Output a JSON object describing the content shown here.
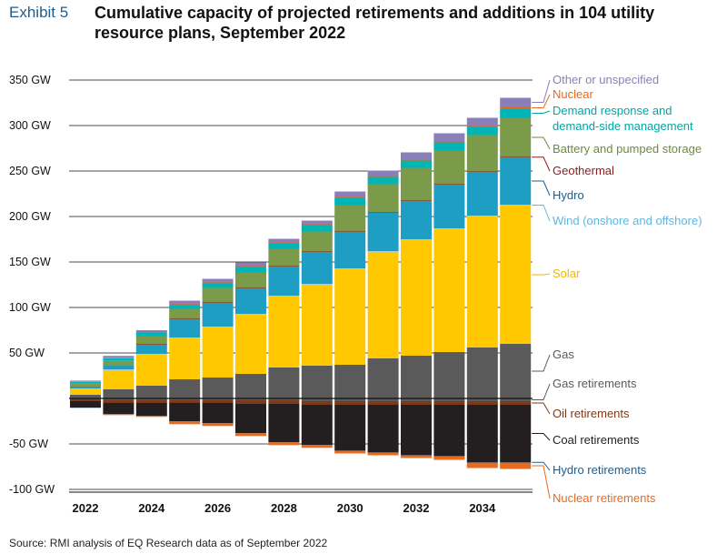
{
  "header": {
    "exhibit": "Exhibit 5",
    "title": "Cumulative capacity of projected retirements and additions in 104 utility resource plans, September 2022"
  },
  "source": "Source: RMI analysis of EQ Research data as of September 2022",
  "chart_data": {
    "type": "bar",
    "stacked": true,
    "ylim": [
      -100,
      350
    ],
    "yticks": [
      350,
      300,
      250,
      200,
      150,
      100,
      50,
      -50,
      -100
    ],
    "ytick_labels": [
      "350 GW",
      "300 GW",
      "250 GW",
      "200 GW",
      "150 GW",
      "100 GW",
      "50 GW",
      "-50 GW",
      "-100 GW"
    ],
    "categories": [
      2022,
      2023,
      2024,
      2025,
      2026,
      2027,
      2028,
      2029,
      2030,
      2031,
      2032,
      2033,
      2034,
      2035
    ],
    "xtick_labels": [
      "2022",
      "2024",
      "2026",
      "2028",
      "2030",
      "2032",
      "2034"
    ],
    "grid": true,
    "legend_placement": "right",
    "series_positive": [
      {
        "name": "Gas",
        "color": "#5a5a5a",
        "values": [
          4,
          10,
          14,
          21,
          23,
          27,
          34,
          36,
          37,
          44,
          47,
          51,
          56,
          60
        ]
      },
      {
        "name": "Solar",
        "color": "#ffc800",
        "values": [
          6,
          21,
          34,
          45,
          55,
          65,
          78,
          89,
          105,
          117,
          127,
          135,
          144,
          152
        ]
      },
      {
        "name": "Wind (onshore and offshore)",
        "color": "#9fd3ea",
        "values": [
          1,
          1,
          1,
          1,
          1,
          1,
          1,
          1,
          1,
          1,
          1,
          1,
          1,
          1
        ]
      },
      {
        "name": "Hydro",
        "color": "#1f9ec4",
        "values": [
          2,
          4,
          10,
          20,
          26,
          28,
          32,
          35,
          40,
          42,
          42,
          48,
          48,
          52
        ]
      },
      {
        "name": "Geothermal",
        "color": "#8c1d1d",
        "values": [
          0.3,
          0.3,
          0.5,
          0.5,
          0.5,
          0.5,
          0.5,
          0.5,
          0.5,
          0.5,
          0.5,
          0.5,
          0.5,
          0.5
        ]
      },
      {
        "name": "Battery and pumped storage",
        "color": "#7b9a4a",
        "values": [
          3,
          5,
          9,
          11,
          16,
          17,
          19,
          22,
          29,
          31,
          36,
          37,
          40,
          43
        ]
      },
      {
        "name": "Demand response and demand-side management",
        "color": "#00b5b5",
        "values": [
          2,
          3,
          4,
          4,
          5,
          6,
          6,
          7,
          8,
          8,
          8,
          9,
          9,
          10
        ]
      },
      {
        "name": "Nuclear",
        "color": "#e86a1f",
        "values": [
          0.3,
          0.5,
          0.5,
          1,
          1,
          1,
          1,
          1,
          1,
          1,
          1,
          1,
          1,
          2
        ]
      },
      {
        "name": "Other or unspecified",
        "color": "#8b7fba",
        "values": [
          1,
          2,
          2,
          4,
          4,
          4,
          4,
          4,
          6,
          6,
          8,
          9,
          9,
          10
        ]
      }
    ],
    "series_negative": [
      {
        "name": "Gas retirements",
        "color": "#5a5a5a",
        "values": [
          -1,
          -2,
          -2,
          -2,
          -2,
          -2,
          -2,
          -3,
          -3,
          -3,
          -3,
          -3,
          -3,
          -3
        ]
      },
      {
        "name": "Oil retirements",
        "color": "#7a3a1a",
        "values": [
          -2,
          -3,
          -3,
          -3,
          -3,
          -4,
          -4,
          -4,
          -4,
          -4,
          -4,
          -4,
          -4,
          -4
        ]
      },
      {
        "name": "Coal retirements",
        "color": "#231f20",
        "values": [
          -7,
          -12,
          -14,
          -20,
          -22,
          -32,
          -42,
          -44,
          -50,
          -52,
          -55,
          -56,
          -63,
          -63
        ]
      },
      {
        "name": "Hydro retirements",
        "color": "#1f5c8a",
        "values": [
          -0.3,
          -0.3,
          -0.3,
          -0.3,
          -0.3,
          -0.3,
          -0.3,
          -0.3,
          -0.5,
          -0.5,
          -0.5,
          -0.5,
          -0.5,
          -0.5
        ]
      },
      {
        "name": "Nuclear retirements",
        "color": "#e86a1f",
        "values": [
          0,
          -1,
          -1,
          -3,
          -3,
          -3,
          -3,
          -3,
          -3,
          -3,
          -3,
          -4,
          -6,
          -7
        ]
      }
    ],
    "labels": [
      {
        "text": "Other or unspecified",
        "color": "#8b7fba",
        "y_value": 350,
        "series": "Other or unspecified"
      },
      {
        "text": "Nuclear",
        "color": "#e86a1f",
        "y_value": 334,
        "series": "Nuclear"
      },
      {
        "text": "Demand response and",
        "color": "#00a6a6",
        "y_value": 316,
        "series": "Demand response and demand-side management"
      },
      {
        "text": "demand-side management",
        "color": "#00a6a6",
        "y_value": 299,
        "series": "Demand response and demand-side management"
      },
      {
        "text": "Battery and pumped storage",
        "color": "#6e8a3f",
        "y_value": 274,
        "series": "Battery and pumped storage"
      },
      {
        "text": "Geothermal",
        "color": "#8c1d1d",
        "y_value": 250,
        "series": "Geothermal"
      },
      {
        "text": "Hydro",
        "color": "#1f5c8a",
        "y_value": 223,
        "series": "Hydro"
      },
      {
        "text": "Wind (onshore and offshore)",
        "color": "#5fb7df",
        "y_value": 195,
        "series": "Wind (onshore and offshore)"
      },
      {
        "text": "Solar",
        "color": "#f2b800",
        "y_value": 137,
        "series": "Solar"
      },
      {
        "text": "Gas",
        "color": "#5a5a5a",
        "y_value": 48,
        "series": "Gas"
      },
      {
        "text": "Gas retirements",
        "color": "#5a5a5a",
        "y_value": 16,
        "series": "Gas retirements"
      },
      {
        "text": "Oil retirements",
        "color": "#7a3a1a",
        "y_value": -17,
        "series": "Oil retirements"
      },
      {
        "text": "Coal retirements",
        "color": "#231f20",
        "y_value": -46,
        "series": "Coal retirements"
      },
      {
        "text": "Hydro retirements",
        "color": "#1f5c8a",
        "y_value": -79,
        "series": "Hydro retirements"
      },
      {
        "text": "Nuclear retirements",
        "color": "#e86a1f",
        "y_value": -110,
        "series": "Nuclear retirements"
      }
    ]
  }
}
